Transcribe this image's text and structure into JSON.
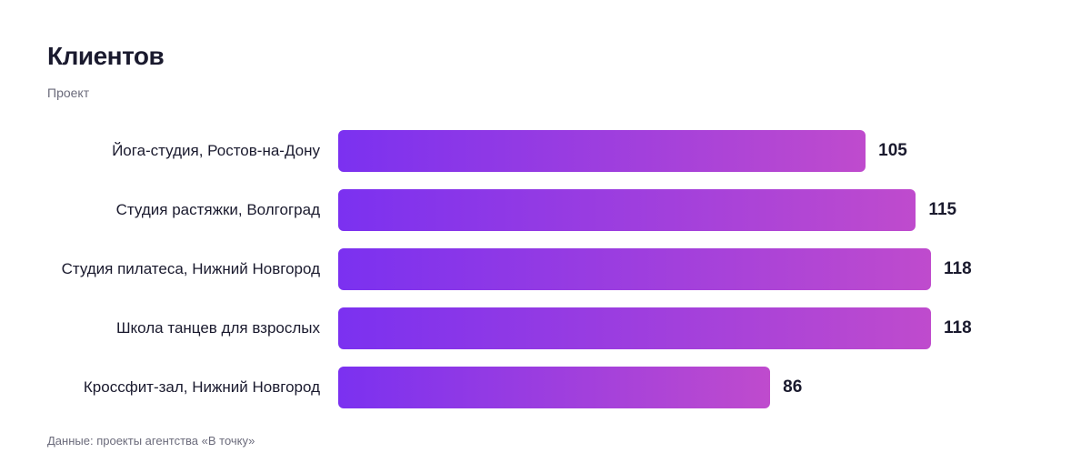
{
  "chart_data": {
    "type": "bar",
    "orientation": "horizontal",
    "title": "Клиентов",
    "subtitle": "Проект",
    "categories": [
      "Йога-студия, Ростов-на-Дону",
      "Студия растяжки, Волгоград",
      "Студия пилатеса, Нижний Новгород",
      "Школа танцев для взрослых",
      "Кроссфит-зал, Нижний Новгород"
    ],
    "values": [
      105,
      115,
      118,
      118,
      86
    ],
    "gradient": [
      "#7b31f0",
      "#bf4bcd"
    ],
    "source": "Данные: проекты агентства «В точку»"
  }
}
